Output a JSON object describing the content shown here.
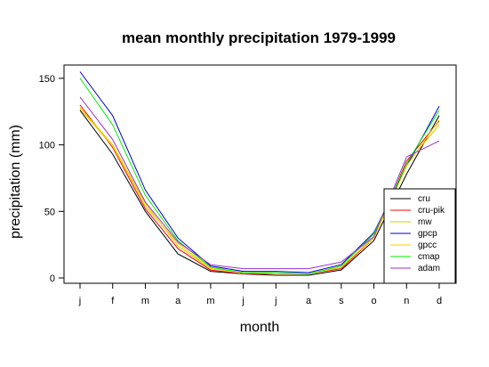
{
  "chart_data": {
    "type": "line",
    "title": "mean monthly precipitation 1979-1999",
    "xlabel": "month",
    "ylabel": "precipitation (mm)",
    "categories": [
      "j",
      "f",
      "m",
      "a",
      "m",
      "j",
      "j",
      "a",
      "s",
      "o",
      "n",
      "d"
    ],
    "yticks": [
      "0",
      "50",
      "100",
      "150"
    ],
    "ylim": [
      -4,
      160
    ],
    "grid": false,
    "legend_position": "bottom-right",
    "series": [
      {
        "name": "cru",
        "color": "#000000",
        "values": [
          126,
          93,
          50,
          18,
          5,
          3,
          2,
          2,
          6,
          28,
          78,
          122
        ]
      },
      {
        "name": "cru-pik",
        "color": "#ff0000",
        "values": [
          130,
          98,
          52,
          22,
          6,
          3,
          3,
          3,
          7,
          30,
          88,
          118
        ]
      },
      {
        "name": "mw",
        "color": "#cccc00",
        "values": [
          128,
          100,
          56,
          24,
          7,
          4,
          3,
          3,
          8,
          31,
          86,
          115
        ]
      },
      {
        "name": "gpcp",
        "color": "#0000cc",
        "values": [
          155,
          122,
          66,
          30,
          9,
          5,
          5,
          4,
          10,
          34,
          84,
          129
        ]
      },
      {
        "name": "gpcc",
        "color": "#ffcc00",
        "values": [
          127,
          99,
          54,
          26,
          7,
          4,
          3,
          3,
          8,
          30,
          84,
          119
        ]
      },
      {
        "name": "cmap",
        "color": "#00ee00",
        "values": [
          150,
          115,
          62,
          28,
          8,
          4,
          4,
          3,
          9,
          33,
          86,
          126
        ]
      },
      {
        "name": "adam",
        "color": "#9933cc",
        "values": [
          136,
          104,
          57,
          27,
          10,
          7,
          7,
          7,
          12,
          31,
          91,
          103
        ]
      }
    ]
  }
}
